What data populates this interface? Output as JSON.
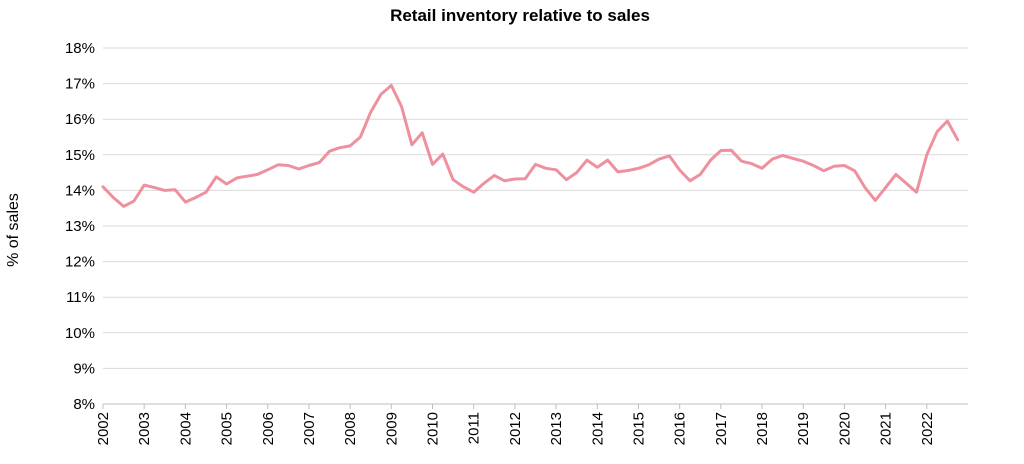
{
  "chart_data": {
    "type": "line",
    "title": "Retail inventory relative to sales",
    "xlabel": "",
    "ylabel": "% of sales",
    "ylim": [
      8,
      18
    ],
    "yticks": [
      "8%",
      "9%",
      "10%",
      "11%",
      "12%",
      "13%",
      "14%",
      "15%",
      "16%",
      "17%",
      "18%"
    ],
    "xticks": [
      "2002",
      "2003",
      "2004",
      "2005",
      "2006",
      "2007",
      "2008",
      "2009",
      "2010",
      "2011",
      "2012",
      "2013",
      "2014",
      "2015",
      "2016",
      "2017",
      "2018",
      "2019",
      "2020",
      "2021",
      "2022"
    ],
    "grid": true,
    "line_color": "#ee909e",
    "series": [
      {
        "x_start": "2002-Q1",
        "frequency": "quarterly",
        "values": [
          14.1,
          13.8,
          13.55,
          13.7,
          14.15,
          14.08,
          14.0,
          14.02,
          13.67,
          13.8,
          13.95,
          14.38,
          14.18,
          14.35,
          14.4,
          14.45,
          14.58,
          14.72,
          14.7,
          14.6,
          14.7,
          14.78,
          15.1,
          15.2,
          15.25,
          15.5,
          16.2,
          16.7,
          16.95,
          16.35,
          15.28,
          15.62,
          14.73,
          15.02,
          14.3,
          14.1,
          13.95,
          14.2,
          14.42,
          14.27,
          14.32,
          14.33,
          14.73,
          14.62,
          14.58,
          14.3,
          14.5,
          14.85,
          14.65,
          14.85,
          14.52,
          14.56,
          14.62,
          14.72,
          14.88,
          14.97,
          14.57,
          14.27,
          14.45,
          14.85,
          15.12,
          15.13,
          14.82,
          14.75,
          14.62,
          14.88,
          14.98,
          14.9,
          14.82,
          14.7,
          14.55,
          14.68,
          14.7,
          14.55,
          14.08,
          13.72,
          14.08,
          14.45,
          14.2,
          13.95,
          15.0,
          15.65,
          15.95,
          15.42
        ]
      }
    ]
  }
}
